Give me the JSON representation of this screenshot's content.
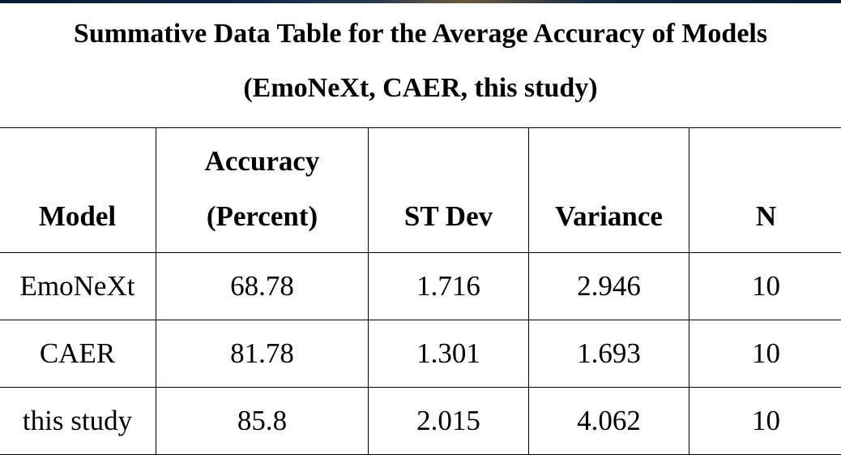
{
  "title_line1": "Summative Data Table for the Average Accuracy of Models",
  "title_line2": "(EmoNeXt, CAER, this study)",
  "table": {
    "headers": {
      "model": "Model",
      "accuracy_line1": "Accuracy",
      "accuracy_line2": "(Percent)",
      "stdev": "ST Dev",
      "variance": "Variance",
      "n": "N"
    },
    "rows": [
      {
        "model": "EmoNeXt",
        "accuracy": "68.78",
        "stdev": "1.716",
        "variance": "2.946",
        "n": "10"
      },
      {
        "model": "CAER",
        "accuracy": "81.78",
        "stdev": "1.301",
        "variance": "1.693",
        "n": "10"
      },
      {
        "model": "this study",
        "accuracy": "85.8",
        "stdev": "2.015",
        "variance": "4.062",
        "n": "10"
      }
    ]
  }
}
